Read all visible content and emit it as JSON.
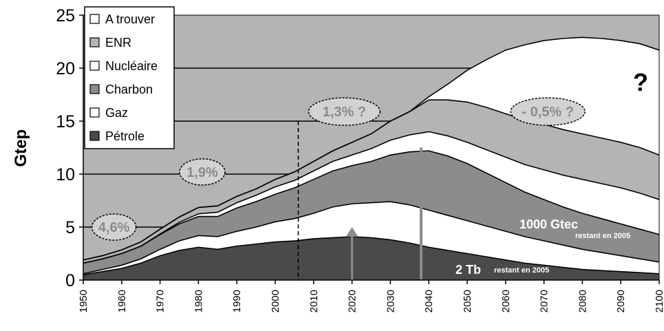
{
  "chart_data": {
    "type": "area",
    "stacked": true,
    "ylabel": "Gtep",
    "xlabel": "",
    "ylim": [
      0,
      25
    ],
    "xlim": [
      1950,
      2100
    ],
    "yticks": [
      "0",
      "5",
      "10",
      "15",
      "20",
      "25"
    ],
    "xticks": [
      "1950",
      "1960",
      "1970",
      "1980",
      "1990",
      "2000",
      "2010",
      "2020",
      "2030",
      "2040",
      "2050",
      "2060",
      "2070",
      "2080",
      "2090",
      "2100"
    ],
    "legend_position": "top-left",
    "legend": [
      "A trouver",
      "ENR",
      "Nucléaire",
      "Charbon",
      "Gaz",
      "Pétrole"
    ],
    "x": [
      1950,
      1955,
      1960,
      1965,
      1970,
      1975,
      1980,
      1985,
      1990,
      1995,
      2000,
      2005,
      2010,
      2015,
      2020,
      2025,
      2030,
      2035,
      2040,
      2045,
      2050,
      2055,
      2060,
      2065,
      2070,
      2075,
      2080,
      2085,
      2090,
      2095,
      2100
    ],
    "series": [
      {
        "name": "Pétrole",
        "color": "#4a4a4a",
        "values": [
          0.5,
          0.8,
          1.1,
          1.6,
          2.3,
          2.8,
          3.1,
          2.9,
          3.2,
          3.4,
          3.6,
          3.7,
          3.9,
          4.0,
          4.1,
          4.0,
          3.8,
          3.5,
          3.1,
          2.8,
          2.5,
          2.2,
          1.9,
          1.6,
          1.4,
          1.2,
          1.0,
          0.9,
          0.8,
          0.7,
          0.6
        ]
      },
      {
        "name": "Gaz",
        "color": "#ffffff",
        "values": [
          0.1,
          0.2,
          0.3,
          0.4,
          0.6,
          0.9,
          1.1,
          1.2,
          1.4,
          1.6,
          1.9,
          2.1,
          2.4,
          2.9,
          3.1,
          3.3,
          3.6,
          3.6,
          3.5,
          3.3,
          3.1,
          2.9,
          2.7,
          2.5,
          2.3,
          2.1,
          1.9,
          1.7,
          1.5,
          1.3,
          1.1
        ]
      },
      {
        "name": "Charbon",
        "color": "#8c8c8c",
        "values": [
          1.0,
          1.0,
          1.1,
          1.2,
          1.4,
          1.6,
          1.8,
          1.9,
          2.2,
          2.4,
          2.6,
          2.9,
          3.2,
          3.4,
          3.6,
          3.9,
          4.4,
          5.0,
          5.6,
          5.6,
          5.4,
          5.0,
          4.6,
          4.2,
          3.9,
          3.6,
          3.4,
          3.2,
          3.0,
          2.8,
          2.6
        ]
      },
      {
        "name": "Nucléaire",
        "color": "#ffffff",
        "values": [
          0.0,
          0.0,
          0.0,
          0.0,
          0.05,
          0.15,
          0.25,
          0.4,
          0.5,
          0.6,
          0.7,
          0.7,
          0.8,
          0.9,
          1.0,
          1.2,
          1.4,
          1.6,
          1.8,
          1.9,
          2.0,
          2.2,
          2.4,
          2.6,
          2.8,
          3.0,
          3.2,
          3.3,
          3.4,
          3.4,
          3.3
        ]
      },
      {
        "name": "ENR",
        "color": "#b4b4b4",
        "values": [
          0.3,
          0.3,
          0.35,
          0.4,
          0.45,
          0.5,
          0.6,
          0.6,
          0.6,
          0.6,
          0.7,
          0.8,
          0.9,
          1.0,
          1.2,
          1.4,
          1.8,
          2.2,
          3.0,
          3.4,
          3.8,
          4.0,
          4.1,
          4.2,
          4.3,
          4.3,
          4.3,
          4.3,
          4.3,
          4.3,
          4.2
        ]
      },
      {
        "name": "A trouver",
        "color": "#ffffff",
        "values": [
          0.0,
          0.0,
          0.0,
          0.0,
          0.0,
          0.0,
          0.0,
          0.0,
          0.0,
          0.0,
          0.0,
          0.0,
          0.0,
          0.0,
          0.0,
          0.0,
          0.0,
          0.0,
          0.3,
          1.5,
          3.0,
          4.5,
          6.0,
          7.1,
          7.9,
          8.6,
          9.1,
          9.4,
          9.6,
          9.8,
          9.9
        ]
      }
    ],
    "annotations": {
      "growth_1": "4,6%",
      "growth_2": "1,9%",
      "growth_3": "1,3% ?",
      "growth_4": "- 0,5% ?",
      "question": "?",
      "coal_note_main": "1000 Gtec",
      "coal_note_sub": "restant en 2005",
      "oil_note_main": "2 Tb",
      "oil_note_sub": "restant en 2005"
    },
    "marker_lines": {
      "dashed_year": 2006,
      "arrow_1_year": 2020,
      "arrow_1_value": 5,
      "arrow_2_year": 2038,
      "arrow_2_value": 12.5
    }
  }
}
